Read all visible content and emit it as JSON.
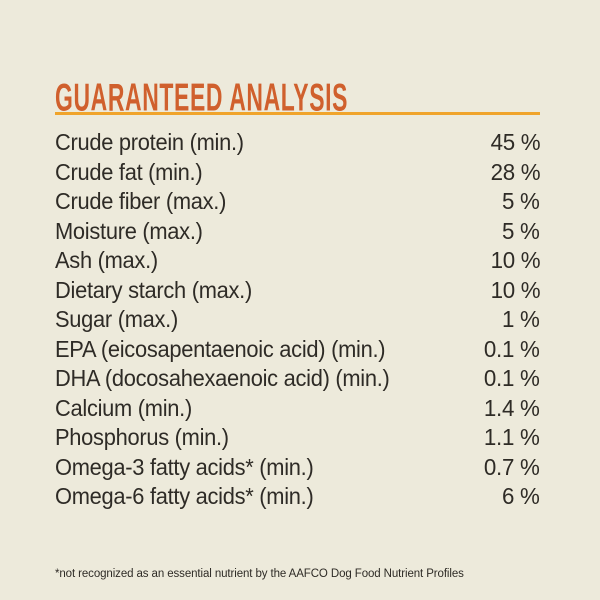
{
  "page": {
    "background_color": "#EDEADB",
    "accent_color": "#D0602D",
    "rule_color": "#F0A42B",
    "text_color": "#2E2B26",
    "title": "GUARANTEED ANALYSIS"
  },
  "analysis": {
    "rows": [
      {
        "label": "Crude protein (min.)",
        "value": "45 %"
      },
      {
        "label": "Crude fat (min.)",
        "value": "28 %"
      },
      {
        "label": "Crude fiber (max.)",
        "value": "5 %"
      },
      {
        "label": "Moisture (max.)",
        "value": "5 %"
      },
      {
        "label": "Ash (max.)",
        "value": "10 %"
      },
      {
        "label": "Dietary starch (max.)",
        "value": "10 %"
      },
      {
        "label": "Sugar (max.)",
        "value": "1 %"
      },
      {
        "label": "EPA (eicosapentaenoic acid) (min.)",
        "value": "0.1 %"
      },
      {
        "label": "DHA (docosahexaenoic acid) (min.)",
        "value": "0.1 %"
      },
      {
        "label": "Calcium (min.)",
        "value": "1.4 %"
      },
      {
        "label": "Phosphorus (min.)",
        "value": "1.1 %"
      },
      {
        "label": "Omega-3 fatty acids* (min.)",
        "value": "0.7 %"
      },
      {
        "label": "Omega-6 fatty acids* (min.)",
        "value": "6 %"
      }
    ],
    "footnote": "*not recognized as an essential nutrient by the AAFCO Dog Food Nutrient Profiles"
  }
}
